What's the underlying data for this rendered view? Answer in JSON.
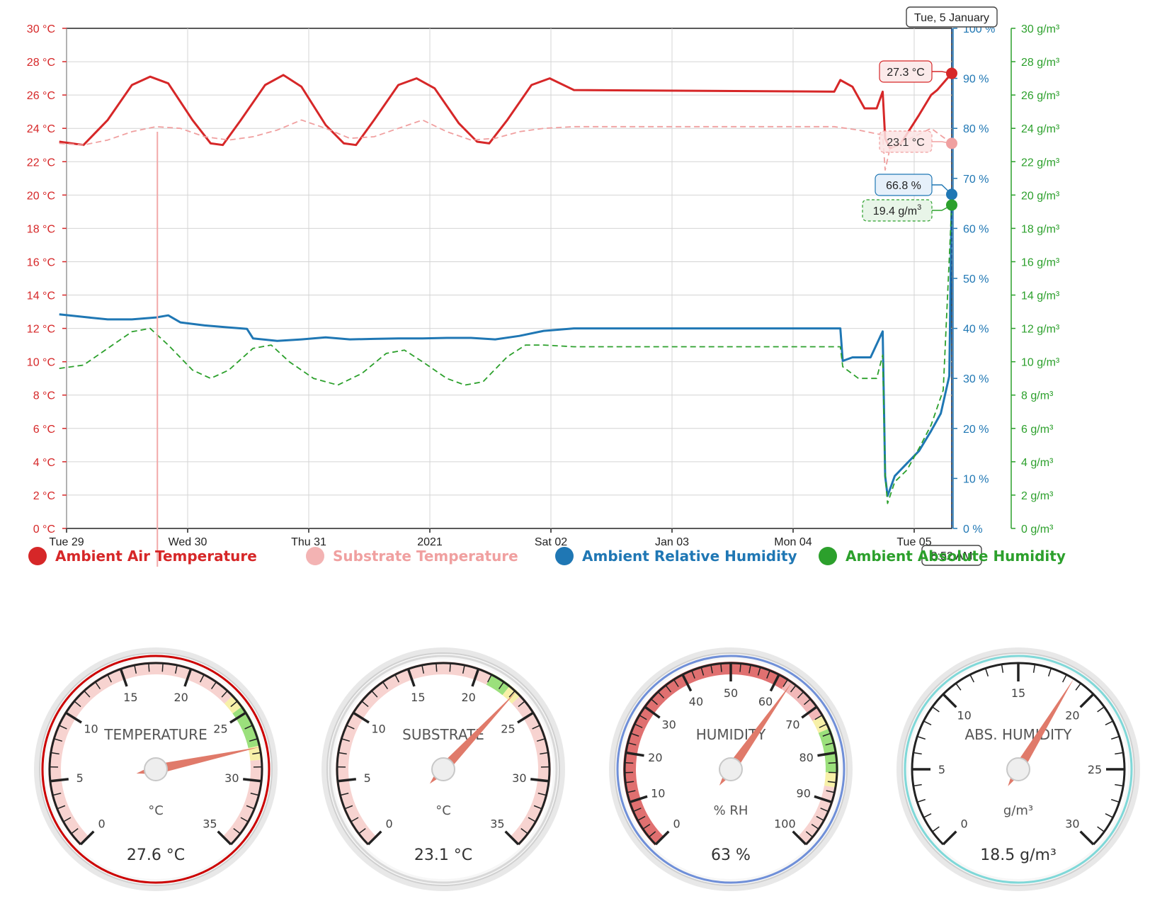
{
  "chart_data": {
    "type": "line",
    "x_ticks": [
      "Tue 29",
      "Wed 30",
      "Thu 31",
      "2021",
      "Sat 02",
      "Jan 03",
      "Mon 04",
      "Tue 05"
    ],
    "x_range": [
      "2020-12-29T00:00",
      "2021-01-05T08:52"
    ],
    "axes": {
      "temperature": {
        "ticks": [
          "0 °C",
          "2 °C",
          "4 °C",
          "6 °C",
          "8 °C",
          "10 °C",
          "12 °C",
          "14 °C",
          "16 °C",
          "18 °C",
          "20 °C",
          "22 °C",
          "24 °C",
          "26 °C",
          "28 °C",
          "30 °C"
        ],
        "range": [
          0,
          30
        ],
        "color": "#d62728"
      },
      "relative_humidity": {
        "ticks": [
          "0 %",
          "10 %",
          "20 %",
          "30 %",
          "40 %",
          "50 %",
          "60 %",
          "70 %",
          "80 %",
          "90 %",
          "100 %"
        ],
        "range": [
          0,
          100
        ],
        "color": "#1f77b4"
      },
      "absolute_humidity": {
        "ticks": [
          "0 g/m³",
          "2 g/m³",
          "4 g/m³",
          "6 g/m³",
          "8 g/m³",
          "10 g/m³",
          "12 g/m³",
          "14 g/m³",
          "16 g/m³",
          "18 g/m³",
          "20 g/m³",
          "22 g/m³",
          "24 g/m³",
          "26 g/m³",
          "28 g/m³",
          "30 g/m³"
        ],
        "range": [
          0,
          30
        ],
        "color": "#2ca02c"
      }
    },
    "grid": true,
    "legend_position": "bottom",
    "series": [
      {
        "name": "Ambient Air Temperature",
        "axis": "temperature",
        "color": "#d62728",
        "style": "solid",
        "points": [
          [
            0.0,
            23.2
          ],
          [
            0.2,
            23.0
          ],
          [
            0.4,
            24.5
          ],
          [
            0.6,
            26.6
          ],
          [
            0.75,
            27.1
          ],
          [
            0.9,
            26.7
          ],
          [
            1.1,
            24.5
          ],
          [
            1.25,
            23.1
          ],
          [
            1.35,
            23.0
          ],
          [
            1.5,
            24.5
          ],
          [
            1.7,
            26.6
          ],
          [
            1.85,
            27.2
          ],
          [
            2.0,
            26.5
          ],
          [
            2.2,
            24.2
          ],
          [
            2.35,
            23.1
          ],
          [
            2.45,
            23.0
          ],
          [
            2.6,
            24.5
          ],
          [
            2.8,
            26.6
          ],
          [
            2.95,
            27.0
          ],
          [
            3.1,
            26.4
          ],
          [
            3.3,
            24.3
          ],
          [
            3.45,
            23.2
          ],
          [
            3.55,
            23.1
          ],
          [
            3.7,
            24.5
          ],
          [
            3.9,
            26.6
          ],
          [
            4.05,
            27.0
          ],
          [
            4.25,
            26.3
          ],
          [
            6.4,
            26.2
          ],
          [
            6.45,
            26.9
          ],
          [
            6.55,
            26.5
          ],
          [
            6.65,
            25.2
          ],
          [
            6.75,
            25.2
          ],
          [
            6.8,
            26.2
          ],
          [
            6.82,
            23.4
          ],
          [
            6.86,
            22.8
          ],
          [
            6.95,
            23.1
          ],
          [
            7.1,
            24.8
          ],
          [
            7.2,
            26.0
          ],
          [
            7.25,
            26.3
          ],
          [
            7.37,
            27.3
          ]
        ]
      },
      {
        "name": "Substrate Temperature",
        "axis": "temperature",
        "color": "#f0a0a0",
        "style": "dashed",
        "points": [
          [
            0.0,
            23.1
          ],
          [
            0.2,
            23.0
          ],
          [
            0.4,
            23.3
          ],
          [
            0.6,
            23.8
          ],
          [
            0.8,
            24.1
          ],
          [
            1.0,
            24.0
          ],
          [
            1.2,
            23.5
          ],
          [
            1.4,
            23.3
          ],
          [
            1.6,
            23.5
          ],
          [
            1.8,
            23.9
          ],
          [
            2.0,
            24.5
          ],
          [
            2.2,
            24.0
          ],
          [
            2.4,
            23.4
          ],
          [
            2.6,
            23.5
          ],
          [
            2.8,
            24.0
          ],
          [
            3.0,
            24.5
          ],
          [
            3.2,
            23.8
          ],
          [
            3.4,
            23.3
          ],
          [
            3.6,
            23.4
          ],
          [
            3.8,
            23.8
          ],
          [
            4.0,
            24.0
          ],
          [
            4.25,
            24.1
          ],
          [
            6.4,
            24.1
          ],
          [
            6.6,
            23.9
          ],
          [
            6.8,
            23.6
          ],
          [
            6.82,
            21.5
          ],
          [
            6.86,
            22.8
          ],
          [
            7.0,
            23.3
          ],
          [
            7.2,
            24.0
          ],
          [
            7.37,
            23.1
          ]
        ]
      },
      {
        "name": "Ambient Relative Humidity",
        "axis": "relative_humidity",
        "color": "#1f77b4",
        "style": "solid",
        "points": [
          [
            0.0,
            42.8
          ],
          [
            0.2,
            42.3
          ],
          [
            0.4,
            41.8
          ],
          [
            0.6,
            41.8
          ],
          [
            0.8,
            42.2
          ],
          [
            0.9,
            42.6
          ],
          [
            1.0,
            41.2
          ],
          [
            1.2,
            40.6
          ],
          [
            1.4,
            40.2
          ],
          [
            1.55,
            39.9
          ],
          [
            1.6,
            38.0
          ],
          [
            1.8,
            37.5
          ],
          [
            2.0,
            37.8
          ],
          [
            2.2,
            38.2
          ],
          [
            2.4,
            37.8
          ],
          [
            2.6,
            37.9
          ],
          [
            2.8,
            38.0
          ],
          [
            3.0,
            38.0
          ],
          [
            3.2,
            38.1
          ],
          [
            3.4,
            38.1
          ],
          [
            3.6,
            37.8
          ],
          [
            3.8,
            38.5
          ],
          [
            4.0,
            39.5
          ],
          [
            4.25,
            40.0
          ],
          [
            6.45,
            40.0
          ],
          [
            6.47,
            33.5
          ],
          [
            6.55,
            34.2
          ],
          [
            6.7,
            34.2
          ],
          [
            6.8,
            39.4
          ],
          [
            6.82,
            10.5
          ],
          [
            6.84,
            6.5
          ],
          [
            6.9,
            10.5
          ],
          [
            7.0,
            13.0
          ],
          [
            7.1,
            15.5
          ],
          [
            7.2,
            19.5
          ],
          [
            7.28,
            23.0
          ],
          [
            7.35,
            30.5
          ],
          [
            7.37,
            66.8
          ]
        ]
      },
      {
        "name": "Ambient Absolute Humidity",
        "axis": "absolute_humidity",
        "color": "#2ca02c",
        "style": "dashed",
        "points": [
          [
            0.0,
            9.6
          ],
          [
            0.2,
            9.8
          ],
          [
            0.4,
            10.8
          ],
          [
            0.6,
            11.8
          ],
          [
            0.75,
            12.0
          ],
          [
            0.9,
            11.0
          ],
          [
            1.1,
            9.5
          ],
          [
            1.25,
            9.0
          ],
          [
            1.4,
            9.5
          ],
          [
            1.6,
            10.8
          ],
          [
            1.75,
            11.0
          ],
          [
            1.9,
            10.0
          ],
          [
            2.1,
            9.0
          ],
          [
            2.3,
            8.6
          ],
          [
            2.5,
            9.3
          ],
          [
            2.7,
            10.5
          ],
          [
            2.85,
            10.7
          ],
          [
            3.0,
            10.0
          ],
          [
            3.2,
            9.0
          ],
          [
            3.35,
            8.6
          ],
          [
            3.5,
            8.8
          ],
          [
            3.7,
            10.3
          ],
          [
            3.85,
            11.0
          ],
          [
            4.0,
            11.0
          ],
          [
            4.25,
            10.9
          ],
          [
            6.45,
            10.9
          ],
          [
            6.47,
            9.7
          ],
          [
            6.6,
            9.0
          ],
          [
            6.75,
            9.0
          ],
          [
            6.8,
            10.4
          ],
          [
            6.82,
            3.2
          ],
          [
            6.84,
            1.5
          ],
          [
            6.9,
            2.8
          ],
          [
            7.0,
            3.5
          ],
          [
            7.1,
            4.8
          ],
          [
            7.2,
            6.2
          ],
          [
            7.3,
            8.3
          ],
          [
            7.37,
            19.4
          ]
        ]
      }
    ],
    "crosshair": {
      "date_label": "Tue, 5 January",
      "time_label": "8:52 AM"
    },
    "tooltips": {
      "air_temperature": "27.3 °C",
      "substrate_temperature": "23.1 °C",
      "relative_humidity": "66.8 %",
      "absolute_humidity_value": "19.4 g/m",
      "absolute_humidity_exp": "3"
    }
  },
  "legend": [
    {
      "label": "Ambient Air Temperature",
      "color": "#d62728",
      "dim": false
    },
    {
      "label": "Substrate Temperature",
      "color": "#f0a0a0",
      "dim": true
    },
    {
      "label": "Ambient Relative Humidity",
      "color": "#1f77b4",
      "dim": false
    },
    {
      "label": "Ambient Absolute Humidity",
      "color": "#2ca02c",
      "dim": false
    }
  ],
  "gauges": [
    {
      "title": "TEMPERATURE",
      "unit": "°C",
      "readout": "27.6 °C",
      "value": 27.6,
      "min": 0,
      "max": 35,
      "major_ticks": [
        "0",
        "5",
        "10",
        "15",
        "20",
        "25",
        "30",
        "35"
      ],
      "minor_per_major": 5,
      "ring": "#cc0000",
      "bands": [
        {
          "from": 0,
          "to": 23.5,
          "color": "#f7d3d0"
        },
        {
          "from": 23.5,
          "to": 24.5,
          "color": "#f7f0a8"
        },
        {
          "from": 24.5,
          "to": 27.5,
          "color": "#9be07c"
        },
        {
          "from": 27.5,
          "to": 28.5,
          "color": "#f7f0a8"
        },
        {
          "from": 28.5,
          "to": 35,
          "color": "#f7d3d0"
        }
      ]
    },
    {
      "title": "SUBSTRATE",
      "unit": "°C",
      "readout": "23.1 °C",
      "value": 23.1,
      "min": 0,
      "max": 35,
      "major_ticks": [
        "0",
        "5",
        "10",
        "15",
        "20",
        "25",
        "30",
        "35"
      ],
      "minor_per_major": 5,
      "ring": "#d8d8d8",
      "bands": [
        {
          "from": 0,
          "to": 21,
          "color": "#f7d3d0"
        },
        {
          "from": 21,
          "to": 22.5,
          "color": "#9be07c"
        },
        {
          "from": 22.5,
          "to": 23.5,
          "color": "#f7f0a8"
        },
        {
          "from": 23.5,
          "to": 35,
          "color": "#f7d3d0"
        }
      ]
    },
    {
      "title": "HUMIDITY",
      "unit": "% RH",
      "readout": "63 %",
      "value": 63,
      "min": 0,
      "max": 100,
      "major_ticks": [
        "0",
        "10",
        "20",
        "30",
        "40",
        "50",
        "60",
        "70",
        "80",
        "90",
        "100"
      ],
      "minor_per_major": 5,
      "ring": "#6f8fd8",
      "bands": [
        {
          "from": 0,
          "to": 62,
          "color": "#e07070"
        },
        {
          "from": 62,
          "to": 72,
          "color": "#f2b8b8"
        },
        {
          "from": 72,
          "to": 75,
          "color": "#f7f0a8"
        },
        {
          "from": 75,
          "to": 84,
          "color": "#9be07c"
        },
        {
          "from": 84,
          "to": 87,
          "color": "#f7f0a8"
        },
        {
          "from": 87,
          "to": 100,
          "color": "#f7d3d0"
        }
      ]
    },
    {
      "title": "ABS. HUMIDITY",
      "unit": "g/m³",
      "readout": "18.5 g/m³",
      "value": 18.5,
      "min": 0,
      "max": 30,
      "major_ticks": [
        "0",
        "5",
        "10",
        "15",
        "20",
        "25",
        "30"
      ],
      "minor_per_major": 5,
      "ring": "#7fd8d8",
      "bands": []
    }
  ]
}
